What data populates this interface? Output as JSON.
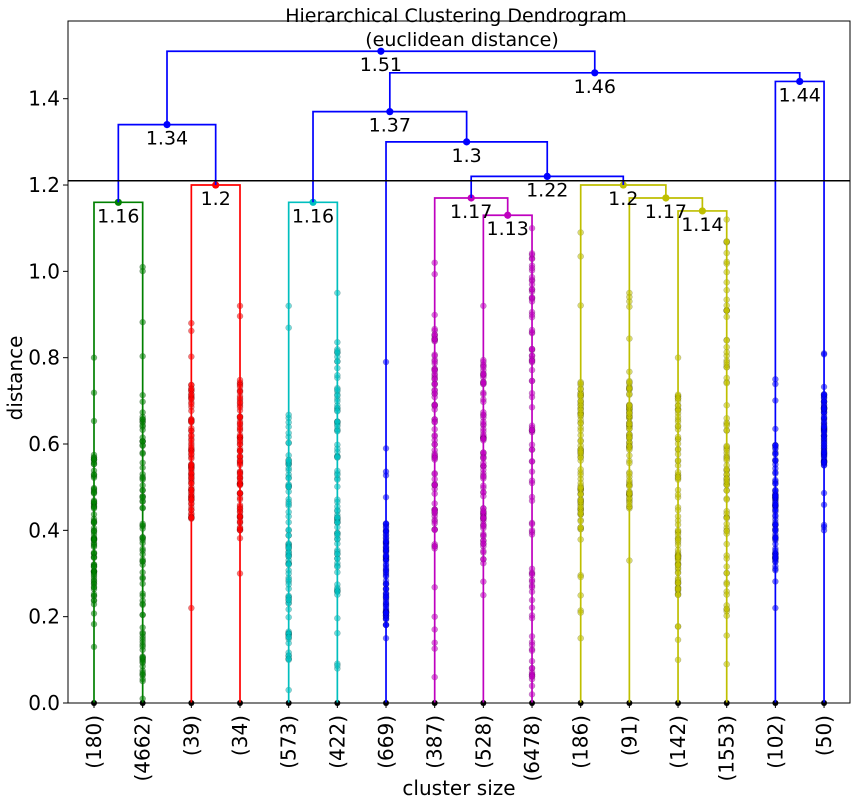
{
  "chart_data": {
    "type": "dendrogram",
    "title": "Hierarchical Clustering Dendrogram",
    "subtitle": "(euclidean distance)",
    "xlabel": "cluster size",
    "ylabel": "distance",
    "ylim": [
      0,
      1.58
    ],
    "yticks": [
      "0.0",
      "0.2",
      "0.4",
      "0.6",
      "0.8",
      "1.0",
      "1.2",
      "1.4"
    ],
    "threshold": 1.21,
    "leaves": [
      "(180)",
      "(4662)",
      "(39)",
      "(34)",
      "(573)",
      "(422)",
      "(669)",
      "(387)",
      "(528)",
      "(6478)",
      "(186)",
      "(91)",
      "(142)",
      "(1553)",
      "(102)",
      "(50)"
    ],
    "merges": [
      {
        "id": 16,
        "left": 0,
        "right": 1,
        "height": 1.16,
        "label": "1.16",
        "color": "#008000"
      },
      {
        "id": 17,
        "left": 2,
        "right": 3,
        "height": 1.2,
        "label": "1.2",
        "color": "#ff0000"
      },
      {
        "id": 18,
        "left": 4,
        "right": 5,
        "height": 1.16,
        "label": "1.16",
        "color": "#00bfbf"
      },
      {
        "id": 19,
        "left": 8,
        "right": 9,
        "height": 1.13,
        "label": "1.13",
        "color": "#bf00bf"
      },
      {
        "id": 20,
        "left": 7,
        "right": 19,
        "height": 1.17,
        "label": "1.17",
        "color": "#bf00bf"
      },
      {
        "id": 21,
        "left": 12,
        "right": 13,
        "height": 1.14,
        "label": "1.14",
        "color": "#bfbf00"
      },
      {
        "id": 22,
        "left": 11,
        "right": 21,
        "height": 1.17,
        "label": "1.17",
        "color": "#bfbf00"
      },
      {
        "id": 23,
        "left": 10,
        "right": 22,
        "height": 1.2,
        "label": "1.2",
        "color": "#bfbf00"
      },
      {
        "id": 24,
        "left": 20,
        "right": 23,
        "height": 1.22,
        "label": "1.22",
        "color": "#0000ff"
      },
      {
        "id": 25,
        "left": 6,
        "right": 24,
        "height": 1.3,
        "label": "1.3",
        "color": "#0000ff"
      },
      {
        "id": 26,
        "left": 18,
        "right": 25,
        "height": 1.37,
        "label": "1.37",
        "color": "#0000ff"
      },
      {
        "id": 27,
        "left": 14,
        "right": 15,
        "height": 1.44,
        "label": "1.44",
        "color": "#0000ff"
      },
      {
        "id": 28,
        "left": 26,
        "right": 27,
        "height": 1.46,
        "label": "1.46",
        "color": "#0000ff"
      },
      {
        "id": 29,
        "left": 16,
        "right": 17,
        "height": 1.34,
        "label": "1.34",
        "color": "#0000ff"
      },
      {
        "id": 30,
        "left": 29,
        "right": 28,
        "height": 1.51,
        "label": "1.51",
        "color": "#0000ff"
      }
    ],
    "leaf_points": [
      {
        "color": "#008000",
        "min": 0.13,
        "max": 0.8,
        "dense_min": 0.22,
        "dense_max": 0.58
      },
      {
        "color": "#008000",
        "min": 0.01,
        "max": 1.01,
        "dense_min": 0.05,
        "dense_max": 0.72
      },
      {
        "color": "#ff0000",
        "min": 0.22,
        "max": 0.88,
        "dense_min": 0.42,
        "dense_max": 0.74
      },
      {
        "color": "#ff0000",
        "min": 0.3,
        "max": 0.92,
        "dense_min": 0.4,
        "dense_max": 0.75
      },
      {
        "color": "#00bfbf",
        "min": 0.03,
        "max": 0.92,
        "dense_min": 0.1,
        "dense_max": 0.68
      },
      {
        "color": "#00bfbf",
        "min": 0.08,
        "max": 0.95,
        "dense_min": 0.25,
        "dense_max": 0.82
      },
      {
        "color": "#0000ff",
        "min": 0.15,
        "max": 0.79,
        "dense_min": 0.18,
        "dense_max": 0.42
      },
      {
        "color": "#bf00bf",
        "min": 0.06,
        "max": 1.02,
        "dense_min": 0.35,
        "dense_max": 0.88
      },
      {
        "color": "#bf00bf",
        "min": 0.25,
        "max": 0.92,
        "dense_min": 0.32,
        "dense_max": 0.8
      },
      {
        "color": "#bf00bf",
        "min": 0.02,
        "max": 1.1,
        "dense_min": 0.05,
        "dense_max": 1.05
      },
      {
        "color": "#bfbf00",
        "min": 0.15,
        "max": 1.09,
        "dense_min": 0.4,
        "dense_max": 0.75
      },
      {
        "color": "#bfbf00",
        "min": 0.33,
        "max": 0.95,
        "dense_min": 0.45,
        "dense_max": 0.75
      },
      {
        "color": "#bfbf00",
        "min": 0.1,
        "max": 0.8,
        "dense_min": 0.25,
        "dense_max": 0.72
      },
      {
        "color": "#bfbf00",
        "min": 0.09,
        "max": 1.12,
        "dense_min": 0.2,
        "dense_max": 1.08
      },
      {
        "color": "#0000ff",
        "min": 0.22,
        "max": 0.75,
        "dense_min": 0.3,
        "dense_max": 0.6
      },
      {
        "color": "#0000ff",
        "min": 0.4,
        "max": 0.81,
        "dense_min": 0.55,
        "dense_max": 0.72
      }
    ],
    "grid": false,
    "legend": "none"
  }
}
